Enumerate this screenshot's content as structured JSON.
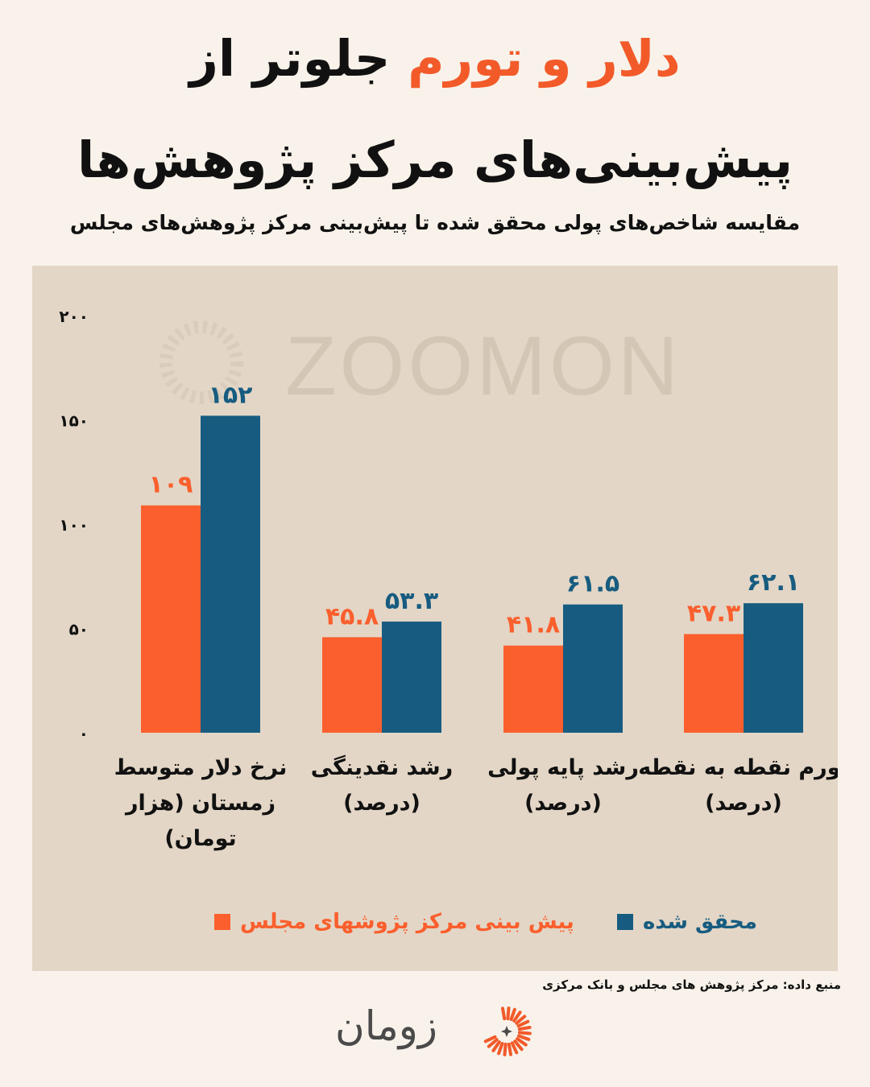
{
  "title": {
    "line1_accent": "دلار و تورم",
    "line1_rest": "جلوتر از",
    "line2": "پیش‌بینی‌های مرکز پژوهش‌ها"
  },
  "subtitle": "مقایسه شاخص‌های پولی محقق شده تا پیش‌بینی مرکز پژوهش‌های مجلس",
  "watermark": "ZOOMON",
  "source": "منبع داده: مرکز پژوهش های مجلس و بانک مرکزی",
  "brand": {
    "name": "زومان"
  },
  "colors": {
    "forecast": "#fa5f2d",
    "actual": "#175c80",
    "background": "#f8f2ea",
    "panel": "#e3d6c6"
  },
  "chart_data": {
    "type": "bar",
    "categories": [
      [
        "نرخ دلار متوسط",
        "زمستان  (هزار",
        "تومان)"
      ],
      [
        "رشد نقدینگی",
        "(درصد)"
      ],
      [
        "رشد پایه پولی",
        "(درصد)"
      ],
      [
        "تورم  نقطه به نقطه",
        "(درصد)"
      ]
    ],
    "series": [
      {
        "name": "پیش بینی مرکز پژوشهای مجلس",
        "values": [
          109,
          45.8,
          41.8,
          47.3
        ],
        "labels": [
          "۱۰۹",
          "۴۵.۸",
          "۴۱.۸",
          "۴۷.۳"
        ]
      },
      {
        "name": "محقق شده",
        "values": [
          152,
          53.3,
          61.5,
          62.1
        ],
        "labels": [
          "۱۵۲",
          "۵۳.۳",
          "۶۱.۵",
          "۶۲.۱"
        ]
      }
    ],
    "yticks": [
      0,
      50,
      100,
      150,
      200
    ],
    "ytick_labels": [
      "۰",
      "۵۰",
      "۱۰۰",
      "۱۵۰",
      "۲۰۰"
    ],
    "ylim": [
      0,
      200
    ],
    "legend_position": "bottom",
    "grid": false
  }
}
